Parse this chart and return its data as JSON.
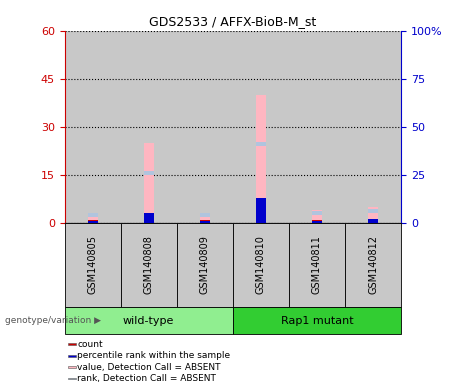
{
  "title": "GDS2533 / AFFX-BioB-M_st",
  "samples": [
    "GSM140805",
    "GSM140808",
    "GSM140809",
    "GSM140810",
    "GSM140811",
    "GSM140812"
  ],
  "groups": [
    {
      "label": "wild-type",
      "indices": [
        0,
        1,
        2
      ],
      "color": "#90ee90"
    },
    {
      "label": "Rap1 mutant",
      "indices": [
        3,
        4,
        5
      ],
      "color": "#32cd32"
    }
  ],
  "count_values": [
    1,
    1,
    1,
    1,
    1,
    1
  ],
  "percentile_rank_values": [
    1,
    5,
    1,
    13,
    1,
    2
  ],
  "absent_value_values": [
    3,
    25,
    3,
    40,
    4,
    5
  ],
  "absent_rank_values": [
    2,
    2,
    2,
    2,
    2,
    2
  ],
  "ylim_left": [
    0,
    60
  ],
  "ylim_right": [
    0,
    100
  ],
  "yticks_left": [
    0,
    15,
    30,
    45,
    60
  ],
  "yticks_right": [
    0,
    25,
    50,
    75,
    100
  ],
  "yticklabels_right": [
    "0",
    "25",
    "50",
    "75",
    "100%"
  ],
  "left_axis_color": "#cc0000",
  "right_axis_color": "#0000cc",
  "bar_width": 0.18,
  "colors": {
    "count": "#cc0000",
    "percentile_rank": "#0000cc",
    "absent_value": "#ffb6c1",
    "absent_rank": "#b0c4de"
  },
  "group_label_text": "genotype/variation",
  "legend": [
    {
      "label": "count",
      "color": "#cc0000"
    },
    {
      "label": "percentile rank within the sample",
      "color": "#0000cc"
    },
    {
      "label": "value, Detection Call = ABSENT",
      "color": "#ffb6c1"
    },
    {
      "label": "rank, Detection Call = ABSENT",
      "color": "#b0c4de"
    }
  ],
  "col_bg_color": "#c8c8c8",
  "group_border_color": "#000000",
  "plot_area_bg": "#ffffff"
}
